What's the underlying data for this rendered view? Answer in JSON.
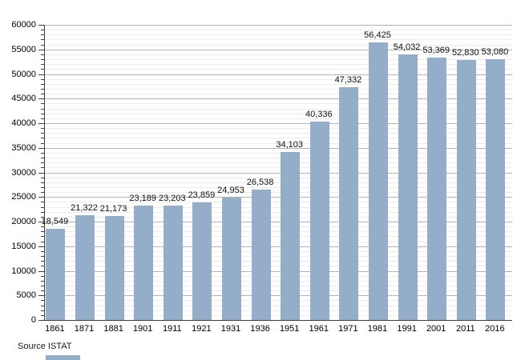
{
  "chart_data": {
    "type": "bar",
    "title": "",
    "categories": [
      "1861",
      "1871",
      "1881",
      "1901",
      "1911",
      "1921",
      "1931",
      "1936",
      "1951",
      "1961",
      "1971",
      "1981",
      "1991",
      "2001",
      "2011",
      "2016"
    ],
    "values": [
      18549,
      21322,
      21173,
      23189,
      23203,
      23859,
      24953,
      26538,
      34103,
      40336,
      47332,
      56425,
      54032,
      53369,
      52830,
      53080
    ],
    "value_labels": [
      "18,549",
      "21,322",
      "21,173",
      "23,189",
      "23,203",
      "23,859",
      "24,953",
      "26,538",
      "34,103",
      "40,336",
      "47,332",
      "56,425",
      "54,032",
      "53,369",
      "52,830",
      "53,080"
    ],
    "xlabel": "",
    "ylabel": "",
    "ylim": [
      0,
      60000
    ],
    "y_major_step": 5000,
    "y_minor_step": 1000,
    "y_tick_labels": [
      "0",
      "5000",
      "10000",
      "15000",
      "20000",
      "25000",
      "30000",
      "35000",
      "40000",
      "45000",
      "50000",
      "55000",
      "60000"
    ],
    "grid": "horizontal major+minor",
    "legend": "none",
    "source": "Source ISTAT",
    "colors": {
      "bar_fill": "#94aec9",
      "major_grid": "#b3b3b3",
      "minor_grid": "#ebebeb",
      "axis": "#404040",
      "text": "#000000",
      "background": "#ffffff"
    }
  }
}
